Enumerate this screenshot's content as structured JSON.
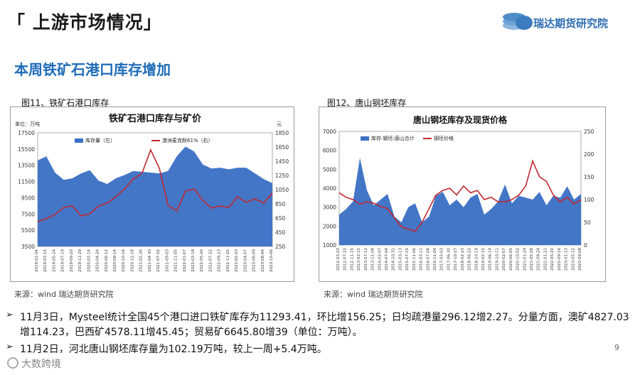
{
  "header": {
    "section_title": "「 上游市场情况」",
    "logo_text": "瑞达期货研究院"
  },
  "subtitle": "本周铁矿石港口库存增加",
  "figures": [
    {
      "caption": "图11、铁矿石港口库存",
      "source": "来源：wind   瑞达期货研究院"
    },
    {
      "caption": "图12、唐山钢坯库存",
      "source": "来源：wind   瑞达期货研究院"
    }
  ],
  "chart_data": [
    {
      "type": "area",
      "title": "铁矿石港口库存与矿价",
      "left_unit": "单位：万吨",
      "right_unit": "元",
      "ylim": [
        3500,
        17500
      ],
      "y2lim": [
        250,
        1850
      ],
      "yticks": [
        "17500",
        "15500",
        "13500",
        "11500",
        "9500",
        "7500",
        "5500",
        "3500"
      ],
      "y2ticks": [
        "1850",
        "1650",
        "1450",
        "1250",
        "1050",
        "850",
        "650",
        "450",
        "250"
      ],
      "legend_placement": "top",
      "x": [
        "2019-01-04",
        "2019-03-15",
        "2019-05-24",
        "2019-07-19",
        "2019-09-20",
        "2019-11-29",
        "2020-02-14",
        "2020-04-24",
        "2020-06-12",
        "2020-08-14",
        "2020-10-16",
        "2020-12-18",
        "2021-02-26",
        "2021-04-30",
        "2021-07-02",
        "2021-09-03",
        "2021-11-05",
        "2022-01-07",
        "2022-03-18",
        "2022-05-20",
        "2022-07-22",
        "2022-09-23",
        "2022-11-25",
        "2023-02-03",
        "2023-04-07",
        "2023-06-09",
        "2023-08-04",
        "2023-10-06"
      ],
      "series": [
        {
          "name": "库存量（左）",
          "axis": "left",
          "color": "#3a6fc4",
          "values": [
            14100,
            14600,
            12600,
            11700,
            11900,
            12500,
            12900,
            11600,
            11200,
            11900,
            12300,
            12800,
            12700,
            12600,
            12500,
            12800,
            14600,
            15800,
            15200,
            13600,
            13100,
            13200,
            13000,
            13200,
            13200,
            12500,
            11800,
            11300
          ]
        },
        {
          "name": "澳洲麦克粉61%（右）",
          "axis": "right",
          "color": "#c0282f",
          "values": [
            600,
            640,
            700,
            800,
            820,
            680,
            710,
            820,
            860,
            950,
            1060,
            1200,
            1280,
            1610,
            1350,
            830,
            750,
            1030,
            1060,
            900,
            790,
            820,
            800,
            950,
            870,
            920,
            860,
            1000
          ]
        }
      ]
    },
    {
      "type": "area",
      "title": "唐山钢坯库存及现货价格",
      "ylim": [
        1000,
        7000
      ],
      "y2lim": [
        0,
        250
      ],
      "yticks": [
        "7000",
        "6000",
        "5000",
        "4000",
        "3000",
        "2000",
        "1000"
      ],
      "y2ticks": [
        "250",
        "200",
        "150",
        "100",
        "50",
        "0"
      ],
      "legend_placement": "top",
      "x": [
        "2012-03-23",
        "2012-07-20",
        "2012-11-16",
        "2013-03-15",
        "2013-07-12",
        "2013-11-08",
        "2014-03-07",
        "2014-07-04",
        "2014-10-31",
        "2015-03-13",
        "2015-07-10",
        "2015-11-06",
        "2016-03-11",
        "2016-07-08",
        "2016-11-04",
        "2017-03-03",
        "2017-06-30",
        "2017-10-27",
        "2018-02-23",
        "2018-06-22",
        "2018-10-19",
        "2019-02-15",
        "2019-06-14",
        "2019-10-11",
        "2020-02-07",
        "2020-06-05",
        "2020-10-02",
        "2021-01-29",
        "2021-05-28",
        "2021-09-24",
        "2022-01-21",
        "2022-05-20",
        "2022-09-16",
        "2023-01-13",
        "2023-05-12",
        "2023-09-08"
      ],
      "series": [
        {
          "name": "库存:钢坯:唐山合计",
          "axis": "left",
          "color": "#3a6fc4",
          "values": [
            2600,
            2900,
            3300,
            5600,
            3900,
            3100,
            3400,
            3700,
            2500,
            2200,
            3000,
            3200,
            2200,
            2500,
            3600,
            3800,
            3100,
            3400,
            3000,
            3500,
            3700,
            2600,
            2900,
            3300,
            4200,
            3200,
            3600,
            3500,
            3400,
            3800,
            3100,
            3600,
            3500,
            4100,
            3400,
            3700
          ]
        },
        {
          "name": "钢坯价格",
          "axis": "right",
          "color": "#c0282f",
          "values": [
            115,
            105,
            100,
            90,
            95,
            92,
            85,
            80,
            60,
            40,
            35,
            30,
            50,
            80,
            110,
            120,
            125,
            110,
            130,
            115,
            120,
            100,
            105,
            95,
            95,
            100,
            110,
            130,
            185,
            150,
            140,
            110,
            95,
            105,
            90,
            100
          ]
        }
      ]
    }
  ],
  "bullets": [
    "11月3日，Mysteel统计全国45个港口进口铁矿库存为11293.41，环比增156.25；日均疏港量296.12增2.27。分量方面，澳矿4827.03增114.23，巴西矿4578.11增45.45；贸易矿6645.80增39（单位：万吨）。",
    "11月2日，河北唐山钢坯库存量为102.19万吨，较上一周+5.4万吨。"
  ],
  "page_number": "9",
  "watermark": "大数跨境"
}
